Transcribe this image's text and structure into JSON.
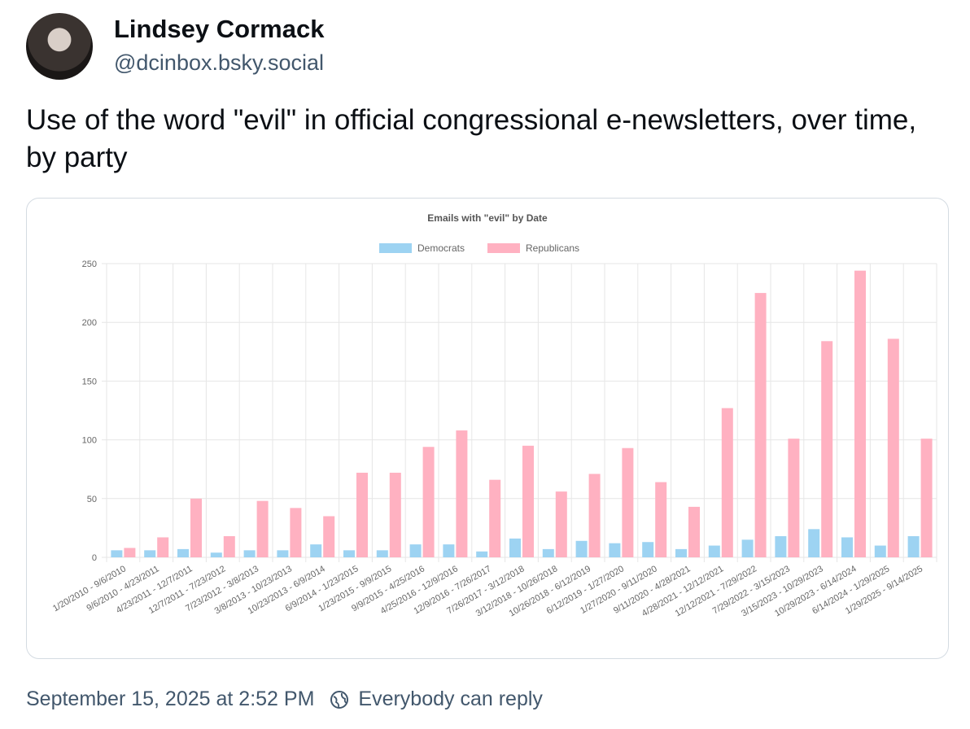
{
  "post": {
    "author_name": "Lindsey Cormack",
    "handle": "@dcinbox.bsky.social",
    "text": "Use of the word \"evil\" in official congressional e-newsletters, over time, by party",
    "timestamp": "September 15, 2025 at 2:52 PM",
    "reply_setting": "Everybody can reply"
  },
  "chart_data": {
    "type": "bar",
    "title": "Emails with \"evil\" by Date",
    "xlabel": "",
    "ylabel": "",
    "ylim": [
      0,
      250
    ],
    "yticks": [
      "0",
      "50",
      "100",
      "150",
      "200",
      "250"
    ],
    "grid": true,
    "legend_position": "top-center",
    "categories": [
      "1/20/2010 - 9/6/2010",
      "9/6/2010 - 4/23/2011",
      "4/23/2011 - 12/7/2011",
      "12/7/2011 - 7/23/2012",
      "7/23/2012 - 3/8/2013",
      "3/8/2013 - 10/23/2013",
      "10/23/2013 - 6/9/2014",
      "6/9/2014 - 1/23/2015",
      "1/23/2015 - 9/9/2015",
      "9/9/2015 - 4/25/2016",
      "4/25/2016 - 12/9/2016",
      "12/9/2016 - 7/26/2017",
      "7/26/2017 - 3/12/2018",
      "3/12/2018 - 10/26/2018",
      "10/26/2018 - 6/12/2019",
      "6/12/2019 - 1/27/2020",
      "1/27/2020 - 9/11/2020",
      "9/11/2020 - 4/28/2021",
      "4/28/2021 - 12/12/2021",
      "12/12/2021 - 7/29/2022",
      "7/29/2022 - 3/15/2023",
      "3/15/2023 - 10/29/2023",
      "10/29/2023 - 6/14/2024",
      "6/14/2024 - 1/29/2025",
      "1/29/2025 - 9/14/2025"
    ],
    "series": [
      {
        "name": "Democrats",
        "color": "#9dd3f2",
        "values": [
          6,
          6,
          7,
          4,
          6,
          6,
          11,
          6,
          6,
          11,
          11,
          5,
          16,
          7,
          14,
          12,
          13,
          7,
          10,
          15,
          18,
          24,
          17,
          10,
          18
        ]
      },
      {
        "name": "Republicans",
        "color": "#ffb1c1",
        "values": [
          8,
          17,
          50,
          18,
          48,
          42,
          35,
          72,
          72,
          94,
          108,
          66,
          95,
          56,
          71,
          93,
          64,
          43,
          127,
          225,
          101,
          184,
          244,
          186,
          101
        ]
      }
    ]
  }
}
